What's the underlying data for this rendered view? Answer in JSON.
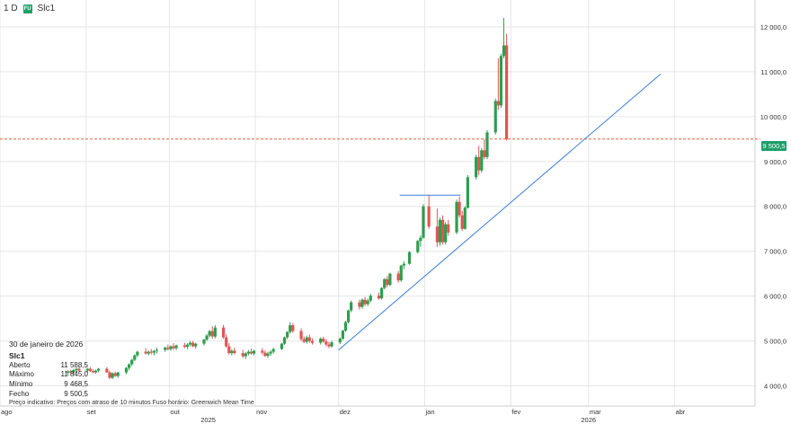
{
  "header": {
    "interval": "1 D",
    "symbol": "Slc1",
    "icon_text": "FU"
  },
  "info": {
    "date": "30 de janeiro de 2026",
    "symbol": "Slc1",
    "rows": [
      {
        "label": "Aberto",
        "value": "11 588,5"
      },
      {
        "label": "Máximo",
        "value": "11 845,0"
      },
      {
        "label": "Mínimo",
        "value": "9 468,5"
      },
      {
        "label": "Fecho",
        "value": "9 500,5"
      }
    ]
  },
  "footnote": "Preço indicativo: Preços com atraso de 10 minutos   Fuso horário: Greenwich Mean Time",
  "current_price_label": "9 500,5",
  "colors": {
    "up": "#2e9e4e",
    "down": "#e05555",
    "trendline": "#3b7fd9",
    "price_line": "#e0663c",
    "price_tag": "#1e9e6a",
    "grid": "#e6e6e6"
  },
  "chart_data": {
    "type": "candlestick",
    "y_ticks": [
      "4 000,0",
      "5 000,0",
      "6 000,0",
      "7 000,0",
      "8 000,0",
      "9 000,0",
      "10 000,0",
      "11 000,0",
      "12 000,0"
    ],
    "y_tick_values": [
      4000,
      5000,
      6000,
      7000,
      8000,
      9000,
      10000,
      11000,
      12000
    ],
    "ylim": [
      3550,
      12600
    ],
    "x_ticks": [
      "ago",
      "set",
      "out",
      "nov",
      "dez",
      "jan",
      "fev",
      "mar",
      "abr"
    ],
    "x_tick_dates": [
      "2025-08-01",
      "2025-09-01",
      "2025-10-01",
      "2025-11-01",
      "2025-12-01",
      "2026-01-01",
      "2026-02-01",
      "2026-03-01",
      "2026-04-01"
    ],
    "year_labels": [
      {
        "label": "2025",
        "date": "2025-10-15"
      },
      {
        "label": "2026",
        "date": "2026-03-01"
      }
    ],
    "xlim": [
      "2025-08-01",
      "2026-04-30"
    ],
    "current_price": 9500.5,
    "grid": true,
    "trendlines": [
      {
        "from": {
          "date": "2025-12-01",
          "price": 4800
        },
        "to": {
          "date": "2026-03-27",
          "price": 10950
        }
      },
      {
        "from": {
          "date": "2025-12-23",
          "price": 8250
        },
        "to": {
          "date": "2026-01-14",
          "price": 8250
        }
      }
    ],
    "candles": [
      {
        "date": "2025-08-25",
        "o": 4290,
        "h": 4350,
        "l": 4230,
        "c": 4320
      },
      {
        "date": "2025-08-26",
        "o": 4320,
        "h": 4360,
        "l": 4270,
        "c": 4300
      },
      {
        "date": "2025-08-27",
        "o": 4300,
        "h": 4380,
        "l": 4260,
        "c": 4350
      },
      {
        "date": "2025-08-28",
        "o": 4350,
        "h": 4400,
        "l": 4290,
        "c": 4380
      },
      {
        "date": "2025-08-29",
        "o": 4380,
        "h": 4420,
        "l": 4310,
        "c": 4340
      },
      {
        "date": "2025-09-01",
        "o": 4340,
        "h": 4400,
        "l": 4290,
        "c": 4380
      },
      {
        "date": "2025-09-02",
        "o": 4380,
        "h": 4420,
        "l": 4310,
        "c": 4330
      },
      {
        "date": "2025-09-03",
        "o": 4330,
        "h": 4370,
        "l": 4280,
        "c": 4300
      },
      {
        "date": "2025-09-04",
        "o": 4300,
        "h": 4360,
        "l": 4270,
        "c": 4340
      },
      {
        "date": "2025-09-05",
        "o": 4340,
        "h": 4400,
        "l": 4300,
        "c": 4380
      },
      {
        "date": "2025-09-08",
        "o": 4380,
        "h": 4420,
        "l": 4290,
        "c": 4300
      },
      {
        "date": "2025-09-09",
        "o": 4300,
        "h": 4340,
        "l": 4150,
        "c": 4180
      },
      {
        "date": "2025-09-10",
        "o": 4180,
        "h": 4300,
        "l": 4150,
        "c": 4280
      },
      {
        "date": "2025-09-11",
        "o": 4280,
        "h": 4320,
        "l": 4200,
        "c": 4220
      },
      {
        "date": "2025-09-12",
        "o": 4220,
        "h": 4310,
        "l": 4180,
        "c": 4300
      },
      {
        "date": "2025-09-15",
        "o": 4300,
        "h": 4420,
        "l": 4260,
        "c": 4400
      },
      {
        "date": "2025-09-16",
        "o": 4400,
        "h": 4500,
        "l": 4350,
        "c": 4480
      },
      {
        "date": "2025-09-17",
        "o": 4480,
        "h": 4600,
        "l": 4440,
        "c": 4580
      },
      {
        "date": "2025-09-18",
        "o": 4580,
        "h": 4700,
        "l": 4550,
        "c": 4680
      },
      {
        "date": "2025-09-19",
        "o": 4680,
        "h": 4780,
        "l": 4640,
        "c": 4760
      },
      {
        "date": "2025-09-22",
        "o": 4760,
        "h": 4840,
        "l": 4700,
        "c": 4720
      },
      {
        "date": "2025-09-23",
        "o": 4720,
        "h": 4790,
        "l": 4680,
        "c": 4760
      },
      {
        "date": "2025-09-24",
        "o": 4760,
        "h": 4820,
        "l": 4700,
        "c": 4740
      },
      {
        "date": "2025-09-25",
        "o": 4740,
        "h": 4800,
        "l": 4680,
        "c": 4780
      },
      {
        "date": "2025-09-26",
        "o": 4780,
        "h": 4850,
        "l": 4720,
        "c": 4800
      },
      {
        "date": "2025-09-29",
        "o": 4800,
        "h": 4880,
        "l": 4760,
        "c": 4850
      },
      {
        "date": "2025-09-30",
        "o": 4850,
        "h": 4920,
        "l": 4790,
        "c": 4820
      },
      {
        "date": "2025-10-01",
        "o": 4820,
        "h": 4900,
        "l": 4780,
        "c": 4880
      },
      {
        "date": "2025-10-02",
        "o": 4880,
        "h": 4950,
        "l": 4800,
        "c": 4840
      },
      {
        "date": "2025-10-03",
        "o": 4840,
        "h": 4920,
        "l": 4800,
        "c": 4900
      },
      {
        "date": "2025-10-06",
        "o": 4900,
        "h": 4960,
        "l": 4840,
        "c": 4870
      },
      {
        "date": "2025-10-07",
        "o": 4870,
        "h": 4950,
        "l": 4820,
        "c": 4920
      },
      {
        "date": "2025-10-08",
        "o": 4920,
        "h": 5000,
        "l": 4880,
        "c": 4960
      },
      {
        "date": "2025-10-09",
        "o": 4960,
        "h": 5000,
        "l": 4860,
        "c": 4880
      },
      {
        "date": "2025-10-10",
        "o": 4880,
        "h": 4960,
        "l": 4830,
        "c": 4940
      },
      {
        "date": "2025-10-13",
        "o": 4940,
        "h": 5050,
        "l": 4900,
        "c": 5030
      },
      {
        "date": "2025-10-14",
        "o": 5030,
        "h": 5150,
        "l": 5000,
        "c": 5120
      },
      {
        "date": "2025-10-15",
        "o": 5120,
        "h": 5250,
        "l": 5080,
        "c": 5220
      },
      {
        "date": "2025-10-16",
        "o": 5220,
        "h": 5330,
        "l": 5050,
        "c": 5100
      },
      {
        "date": "2025-10-17",
        "o": 5100,
        "h": 5350,
        "l": 5060,
        "c": 5300
      },
      {
        "date": "2025-10-20",
        "o": 5300,
        "h": 5360,
        "l": 5050,
        "c": 5080
      },
      {
        "date": "2025-10-21",
        "o": 5080,
        "h": 5150,
        "l": 4850,
        "c": 4880
      },
      {
        "date": "2025-10-22",
        "o": 4880,
        "h": 4950,
        "l": 4700,
        "c": 4730
      },
      {
        "date": "2025-10-23",
        "o": 4730,
        "h": 4820,
        "l": 4680,
        "c": 4780
      },
      {
        "date": "2025-10-24",
        "o": 4780,
        "h": 4850,
        "l": 4700,
        "c": 4730
      },
      {
        "date": "2025-10-27",
        "o": 4730,
        "h": 4800,
        "l": 4620,
        "c": 4660
      },
      {
        "date": "2025-10-28",
        "o": 4660,
        "h": 4750,
        "l": 4600,
        "c": 4720
      },
      {
        "date": "2025-10-29",
        "o": 4720,
        "h": 4800,
        "l": 4680,
        "c": 4760
      },
      {
        "date": "2025-10-30",
        "o": 4760,
        "h": 4830,
        "l": 4700,
        "c": 4720
      },
      {
        "date": "2025-10-31",
        "o": 4720,
        "h": 4800,
        "l": 4680,
        "c": 4780
      },
      {
        "date": "2025-11-03",
        "o": 4780,
        "h": 4840,
        "l": 4700,
        "c": 4740
      },
      {
        "date": "2025-11-04",
        "o": 4740,
        "h": 4790,
        "l": 4640,
        "c": 4670
      },
      {
        "date": "2025-11-05",
        "o": 4670,
        "h": 4760,
        "l": 4620,
        "c": 4720
      },
      {
        "date": "2025-11-06",
        "o": 4720,
        "h": 4790,
        "l": 4670,
        "c": 4760
      },
      {
        "date": "2025-11-07",
        "o": 4760,
        "h": 4850,
        "l": 4720,
        "c": 4820
      },
      {
        "date": "2025-11-10",
        "o": 4820,
        "h": 4960,
        "l": 4800,
        "c": 4940
      },
      {
        "date": "2025-11-11",
        "o": 4940,
        "h": 5100,
        "l": 4910,
        "c": 5080
      },
      {
        "date": "2025-11-12",
        "o": 5080,
        "h": 5220,
        "l": 5040,
        "c": 5200
      },
      {
        "date": "2025-11-13",
        "o": 5200,
        "h": 5420,
        "l": 5160,
        "c": 5350
      },
      {
        "date": "2025-11-14",
        "o": 5350,
        "h": 5400,
        "l": 5180,
        "c": 5220
      },
      {
        "date": "2025-11-17",
        "o": 5220,
        "h": 5280,
        "l": 5000,
        "c": 5040
      },
      {
        "date": "2025-11-18",
        "o": 5040,
        "h": 5100,
        "l": 4950,
        "c": 4980
      },
      {
        "date": "2025-11-19",
        "o": 4980,
        "h": 5120,
        "l": 4940,
        "c": 5080
      },
      {
        "date": "2025-11-20",
        "o": 5080,
        "h": 5140,
        "l": 4960,
        "c": 5000
      },
      {
        "date": "2025-11-21",
        "o": 5000,
        "h": 5060,
        "l": 4920,
        "c": 4960
      },
      {
        "date": "2025-11-24",
        "o": 4960,
        "h": 5080,
        "l": 4920,
        "c": 5050
      },
      {
        "date": "2025-11-25",
        "o": 5050,
        "h": 5100,
        "l": 4960,
        "c": 4990
      },
      {
        "date": "2025-11-26",
        "o": 4990,
        "h": 5040,
        "l": 4880,
        "c": 4920
      },
      {
        "date": "2025-11-27",
        "o": 4920,
        "h": 4980,
        "l": 4840,
        "c": 4880
      },
      {
        "date": "2025-11-28",
        "o": 4880,
        "h": 5000,
        "l": 4850,
        "c": 4970
      },
      {
        "date": "2025-12-01",
        "o": 4970,
        "h": 5080,
        "l": 4930,
        "c": 5050
      },
      {
        "date": "2025-12-02",
        "o": 5050,
        "h": 5250,
        "l": 5020,
        "c": 5230
      },
      {
        "date": "2025-12-03",
        "o": 5230,
        "h": 5450,
        "l": 5200,
        "c": 5420
      },
      {
        "date": "2025-12-04",
        "o": 5420,
        "h": 5700,
        "l": 5390,
        "c": 5680
      },
      {
        "date": "2025-12-05",
        "o": 5680,
        "h": 5900,
        "l": 5640,
        "c": 5860
      },
      {
        "date": "2025-12-08",
        "o": 5860,
        "h": 5920,
        "l": 5700,
        "c": 5760
      },
      {
        "date": "2025-12-09",
        "o": 5760,
        "h": 5950,
        "l": 5720,
        "c": 5920
      },
      {
        "date": "2025-12-10",
        "o": 5920,
        "h": 5980,
        "l": 5780,
        "c": 5820
      },
      {
        "date": "2025-12-11",
        "o": 5820,
        "h": 5940,
        "l": 5780,
        "c": 5900
      },
      {
        "date": "2025-12-12",
        "o": 5900,
        "h": 6050,
        "l": 5860,
        "c": 6010
      },
      {
        "date": "2025-12-15",
        "o": 6010,
        "h": 6080,
        "l": 5920,
        "c": 5950
      },
      {
        "date": "2025-12-16",
        "o": 5950,
        "h": 6200,
        "l": 5920,
        "c": 6180
      },
      {
        "date": "2025-12-17",
        "o": 6180,
        "h": 6400,
        "l": 6150,
        "c": 6380
      },
      {
        "date": "2025-12-18",
        "o": 6380,
        "h": 6450,
        "l": 6200,
        "c": 6250
      },
      {
        "date": "2025-12-19",
        "o": 6250,
        "h": 6520,
        "l": 6220,
        "c": 6500
      },
      {
        "date": "2025-12-22",
        "o": 6500,
        "h": 6560,
        "l": 6300,
        "c": 6350
      },
      {
        "date": "2025-12-23",
        "o": 6350,
        "h": 6700,
        "l": 6320,
        "c": 6680
      },
      {
        "date": "2025-12-24",
        "o": 6680,
        "h": 6780,
        "l": 6600,
        "c": 6720
      },
      {
        "date": "2025-12-26",
        "o": 6720,
        "h": 7000,
        "l": 6700,
        "c": 6980
      },
      {
        "date": "2025-12-29",
        "o": 6980,
        "h": 7250,
        "l": 6950,
        "c": 7230
      },
      {
        "date": "2025-12-30",
        "o": 7230,
        "h": 7350,
        "l": 7100,
        "c": 7300
      },
      {
        "date": "2025-12-31",
        "o": 7300,
        "h": 8050,
        "l": 7280,
        "c": 8000
      },
      {
        "date": "2026-01-02",
        "o": 8000,
        "h": 8250,
        "l": 7500,
        "c": 7550
      },
      {
        "date": "2026-01-05",
        "o": 7550,
        "h": 7950,
        "l": 7100,
        "c": 7200
      },
      {
        "date": "2026-01-06",
        "o": 7200,
        "h": 7750,
        "l": 7120,
        "c": 7700
      },
      {
        "date": "2026-01-07",
        "o": 7700,
        "h": 7800,
        "l": 7150,
        "c": 7200
      },
      {
        "date": "2026-01-08",
        "o": 7200,
        "h": 7650,
        "l": 7150,
        "c": 7600
      },
      {
        "date": "2026-01-09",
        "o": 7600,
        "h": 7700,
        "l": 7350,
        "c": 7420
      },
      {
        "date": "2026-01-12",
        "o": 7420,
        "h": 8150,
        "l": 7380,
        "c": 8100
      },
      {
        "date": "2026-01-13",
        "o": 8100,
        "h": 8220,
        "l": 7750,
        "c": 7800
      },
      {
        "date": "2026-01-14",
        "o": 7800,
        "h": 7900,
        "l": 7450,
        "c": 7500
      },
      {
        "date": "2026-01-15",
        "o": 7500,
        "h": 8000,
        "l": 7480,
        "c": 7970
      },
      {
        "date": "2026-01-16",
        "o": 7970,
        "h": 8700,
        "l": 7950,
        "c": 8650
      },
      {
        "date": "2026-01-19",
        "o": 8650,
        "h": 9150,
        "l": 8600,
        "c": 9100
      },
      {
        "date": "2026-01-20",
        "o": 9100,
        "h": 9350,
        "l": 8700,
        "c": 8800
      },
      {
        "date": "2026-01-21",
        "o": 8800,
        "h": 9300,
        "l": 8750,
        "c": 9250
      },
      {
        "date": "2026-01-22",
        "o": 9250,
        "h": 9500,
        "l": 9050,
        "c": 9100
      },
      {
        "date": "2026-01-23",
        "o": 9100,
        "h": 9700,
        "l": 9050,
        "c": 9650
      },
      {
        "date": "2026-01-26",
        "o": 9650,
        "h": 10400,
        "l": 9600,
        "c": 10350
      },
      {
        "date": "2026-01-27",
        "o": 10350,
        "h": 11300,
        "l": 10150,
        "c": 10250
      },
      {
        "date": "2026-01-28",
        "o": 10250,
        "h": 11400,
        "l": 10200,
        "c": 11350
      },
      {
        "date": "2026-01-29",
        "o": 11350,
        "h": 12200,
        "l": 11300,
        "c": 11588.5
      },
      {
        "date": "2026-01-30",
        "o": 11588.5,
        "h": 11845,
        "l": 9468.5,
        "c": 9500.5
      }
    ]
  }
}
